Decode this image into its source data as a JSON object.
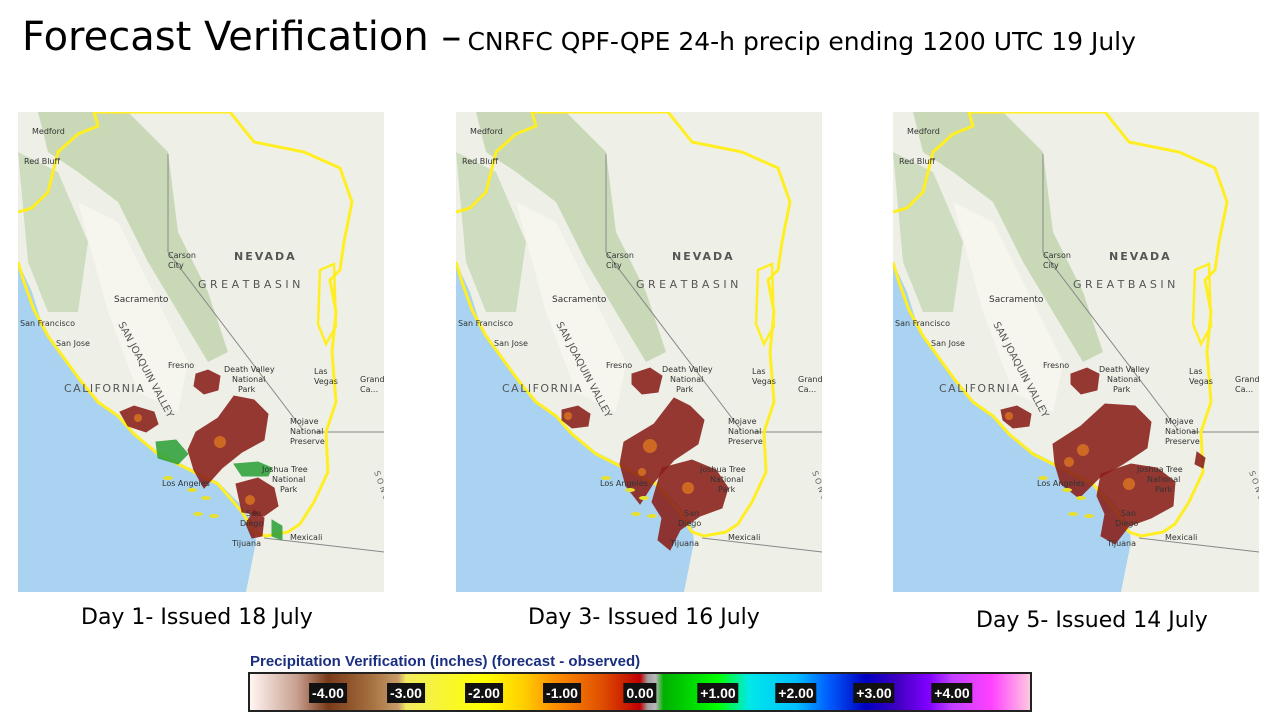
{
  "title": {
    "main": "Forecast Verification –",
    "subtitle": "CNRFC QPF-QPE 24-h precip ending 1200 UTC 19 July"
  },
  "maps": [
    {
      "caption": "Day 1- Issued 18 July"
    },
    {
      "caption": "Day 3- Issued 16 July"
    },
    {
      "caption": "Day 5- Issued 14 July"
    }
  ],
  "map_labels": {
    "medford": "Medford",
    "red_bluff": "Red Bluff",
    "nevada": "NEVADA",
    "great_basin": "G R E A T   B A S I N",
    "carson_city_1": "Carson",
    "carson_city_2": "City",
    "sacramento": "Sacramento",
    "san_francisco": "San Francisco",
    "san_jose": "San Jose",
    "san_joaquin_valley": "SAN JOAQUIN VALLEY",
    "fresno": "Fresno",
    "california": "CALIFORNIA",
    "death_valley_1": "Death Valley",
    "death_valley_2": "National",
    "death_valley_3": "Park",
    "las_vegas_1": "Las",
    "las_vegas_2": "Vegas",
    "grand_1": "Grand",
    "grand_2": "Ca...",
    "mojave_1": "Mojave",
    "mojave_2": "National",
    "mojave_3": "Preserve",
    "joshua_tree_1": "Joshua Tree",
    "joshua_tree_2": "National",
    "joshua_tree_3": "Park",
    "los_angeles": "Los Angeles",
    "san_diego_1": "San",
    "san_diego_2": "Diego",
    "tijuana": "Tijuana",
    "mexicali": "Mexicali",
    "sonoran": "S O N O R A N   D E S E R T"
  },
  "legend": {
    "title": "Precipitation Verification (inches) (forecast - observed)",
    "ticks": [
      {
        "label": "-4.00",
        "value": -4.0,
        "style": "dark"
      },
      {
        "label": "-3.00",
        "value": -3.0,
        "style": "dark"
      },
      {
        "label": "-2.00",
        "value": -2.0,
        "style": "dark"
      },
      {
        "label": "-1.00",
        "value": -1.0,
        "style": "dark"
      },
      {
        "label": "0.00",
        "value": 0.0,
        "style": "dark"
      },
      {
        "label": "+1.00",
        "value": 1.0,
        "style": "dark"
      },
      {
        "label": "+2.00",
        "value": 2.0,
        "style": "dark"
      },
      {
        "label": "+3.00",
        "value": 3.0,
        "style": "dark"
      },
      {
        "label": "+4.00",
        "value": 4.0,
        "style": "dark"
      }
    ],
    "range": [
      -5.0,
      5.0
    ]
  },
  "colors": {
    "boundary": "#ffee22",
    "ocean": "#a9d3f0",
    "land": "#eef0e8",
    "mountains": "#b9cfa4",
    "overforecast": "#8a1f1a",
    "overforecast_core": "#e07a20",
    "underforecast": "#2fa13a"
  }
}
